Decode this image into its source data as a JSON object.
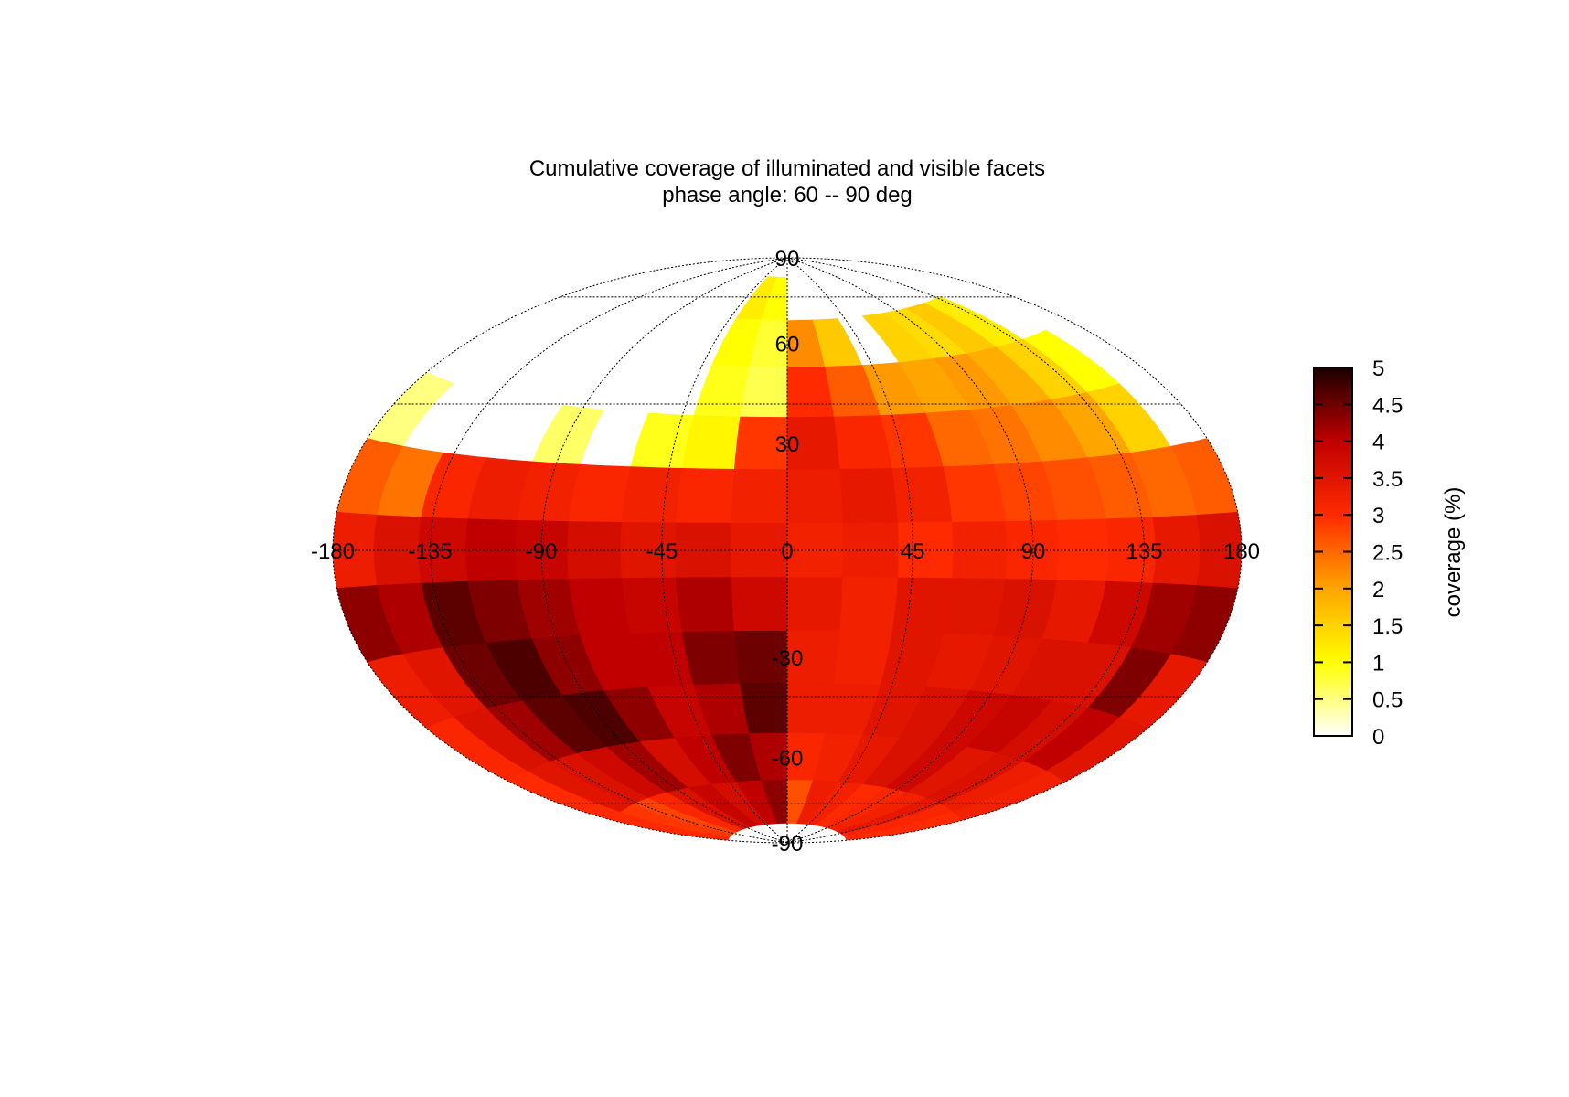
{
  "chart_data": {
    "type": "heatmap",
    "projection": "hammer-aitoff",
    "title": "Cumulative coverage of illuminated and visible facets",
    "subtitle": "phase angle:  60 --  90 deg",
    "colorbar_label": "coverage (%)",
    "colorbar_ticks": [
      "0",
      "0.5",
      "1",
      "1.5",
      "2",
      "2.5",
      "3",
      "3.5",
      "4",
      "4.5",
      "5"
    ],
    "zlim": [
      0,
      5
    ],
    "colormap": [
      "#ffffff",
      "#ffff00",
      "#ffa500",
      "#ff2a00",
      "#c00000",
      "#1a0000"
    ],
    "xlim": [
      -180,
      180
    ],
    "ylim": [
      -90,
      90
    ],
    "x_ticks": [
      "-180",
      "-135",
      "-90",
      "-45",
      "0",
      "45",
      "90",
      "135",
      "180"
    ],
    "y_ticks": [
      "-90",
      "-60",
      "-30",
      "30",
      "60",
      "90"
    ],
    "grid": true,
    "lon_bins": [
      -180,
      -160,
      -140,
      -120,
      -100,
      -80,
      -60,
      -40,
      -20,
      0,
      20,
      40,
      60,
      80,
      100,
      120,
      140,
      160
    ],
    "lat_bins": [
      75,
      60,
      45,
      30,
      15,
      0,
      -15,
      -30,
      -45,
      -60,
      -75
    ],
    "bin_size_deg": [
      20,
      15
    ],
    "values": [
      [
        0.0,
        0.0,
        0.0,
        0.0,
        0.0,
        0.0,
        0.0,
        1.2,
        1.0,
        0.0,
        0.0,
        0.0,
        0.0,
        0.0,
        0.0,
        0.0,
        0.0,
        0.0
      ],
      [
        0.0,
        0.0,
        0.0,
        0.0,
        0.0,
        0.0,
        0.0,
        1.0,
        0.8,
        2.2,
        1.6,
        0.0,
        1.5,
        1.4,
        1.6,
        1.2,
        0.0,
        0.0
      ],
      [
        0.0,
        0.0,
        0.0,
        0.0,
        0.0,
        0.0,
        0.0,
        0.9,
        0.7,
        3.0,
        2.6,
        2.1,
        2.0,
        2.1,
        1.9,
        1.5,
        1.0,
        0.0
      ],
      [
        0.5,
        0.0,
        0.0,
        0.0,
        0.6,
        0.0,
        0.9,
        1.1,
        2.9,
        3.4,
        3.1,
        2.9,
        2.5,
        2.4,
        2.2,
        2.0,
        1.5,
        0.0
      ],
      [
        2.6,
        2.4,
        3.1,
        3.3,
        3.2,
        3.1,
        3.2,
        3.1,
        3.2,
        3.3,
        3.4,
        3.2,
        2.9,
        2.8,
        2.7,
        2.6,
        2.5,
        2.6
      ],
      [
        3.3,
        3.6,
        3.8,
        4.0,
        3.9,
        3.7,
        3.5,
        3.6,
        3.4,
        3.2,
        3.3,
        3.0,
        3.2,
        3.1,
        3.0,
        3.1,
        3.4,
        3.6
      ],
      [
        4.3,
        4.1,
        4.6,
        4.4,
        4.2,
        4.0,
        3.9,
        4.1,
        3.8,
        3.4,
        3.2,
        3.5,
        3.5,
        3.6,
        3.4,
        3.8,
        4.2,
        4.3
      ],
      [
        3.3,
        3.5,
        4.5,
        4.7,
        4.3,
        4.0,
        4.0,
        4.4,
        4.5,
        3.3,
        3.2,
        3.5,
        3.4,
        3.5,
        3.6,
        3.6,
        4.4,
        3.4
      ],
      [
        3.1,
        3.6,
        4.2,
        4.6,
        4.7,
        4.3,
        3.9,
        4.1,
        4.6,
        3.3,
        3.3,
        3.5,
        3.6,
        3.8,
        3.9,
        3.7,
        4.0,
        3.5
      ],
      [
        3.0,
        3.5,
        3.6,
        3.8,
        4.2,
        3.7,
        4.0,
        4.4,
        4.1,
        3.1,
        3.2,
        3.4,
        3.6,
        3.8,
        3.5,
        3.6,
        3.3,
        3.2
      ],
      [
        3.0,
        2.9,
        2.8,
        3.1,
        3.6,
        3.9,
        3.7,
        4.0,
        4.3,
        2.7,
        3.3,
        3.2,
        3.0,
        3.1,
        3.2,
        3.4,
        3.1,
        3.0
      ]
    ]
  }
}
